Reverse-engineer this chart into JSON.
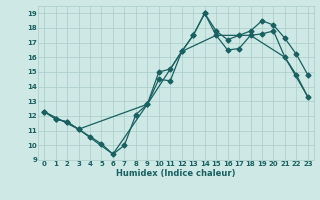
{
  "xlabel": "Humidex (Indice chaleur)",
  "xlim": [
    -0.5,
    23.5
  ],
  "ylim": [
    9,
    19.5
  ],
  "yticks": [
    9,
    10,
    11,
    12,
    13,
    14,
    15,
    16,
    17,
    18,
    19
  ],
  "xticks": [
    0,
    1,
    2,
    3,
    4,
    5,
    6,
    7,
    8,
    9,
    10,
    11,
    12,
    13,
    14,
    15,
    16,
    17,
    18,
    19,
    20,
    21,
    22,
    23
  ],
  "bg_color": "#cde8e5",
  "grid_color": "#aaccca",
  "line_color": "#1a6060",
  "series": [
    {
      "x": [
        0,
        1,
        2,
        3,
        4,
        5,
        6,
        7,
        8,
        9,
        10,
        11,
        12,
        13,
        14,
        15,
        16,
        17,
        18,
        19,
        20,
        21,
        22,
        23
      ],
      "y": [
        12.3,
        11.8,
        11.6,
        11.1,
        10.6,
        10.1,
        9.4,
        10.0,
        12.1,
        12.8,
        14.5,
        14.4,
        16.4,
        17.5,
        19.0,
        17.5,
        16.5,
        16.6,
        17.5,
        17.6,
        17.8,
        16.0,
        14.8,
        13.3
      ]
    },
    {
      "x": [
        0,
        1,
        2,
        3,
        9,
        10,
        11,
        12,
        13,
        14,
        15,
        16,
        17,
        18,
        19,
        20,
        21,
        22,
        23
      ],
      "y": [
        12.3,
        11.8,
        11.6,
        11.1,
        12.8,
        15.0,
        15.2,
        16.4,
        17.5,
        19.0,
        17.8,
        17.2,
        17.5,
        17.8,
        18.5,
        18.2,
        17.3,
        16.2,
        14.8
      ]
    },
    {
      "x": [
        0,
        3,
        6,
        9,
        12,
        15,
        18,
        21,
        23
      ],
      "y": [
        12.3,
        11.1,
        9.4,
        12.8,
        16.4,
        17.5,
        17.5,
        16.0,
        13.3
      ]
    }
  ],
  "marker_size": 2.5,
  "linewidth": 0.9
}
